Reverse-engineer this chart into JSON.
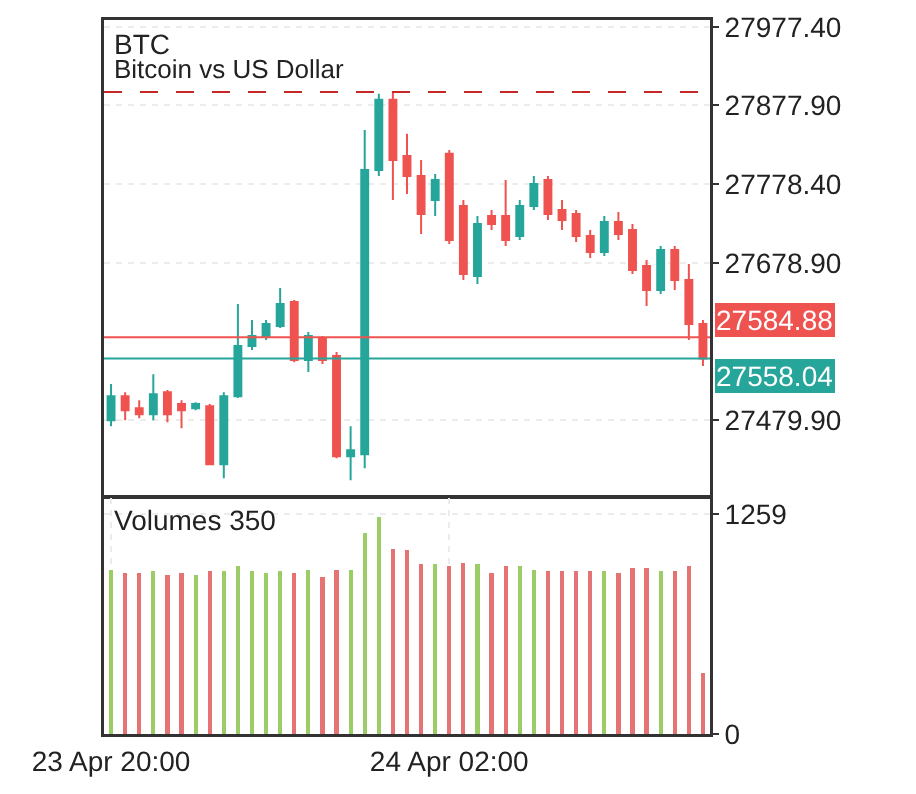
{
  "chart_data": [
    {
      "type": "candlestick",
      "title": "BTC",
      "subtitle": "Bitcoin vs US Dollar",
      "categories": [
        null,
        null,
        null,
        null,
        null,
        null,
        null,
        null,
        null,
        null,
        null,
        null,
        null,
        null,
        null,
        null,
        null,
        null,
        null,
        null,
        null,
        null,
        null,
        null,
        null,
        null,
        null,
        null,
        null,
        null,
        null,
        null,
        null,
        null,
        null,
        null,
        null,
        null,
        null,
        null,
        null,
        null,
        null
      ],
      "ohlc": [
        [
          27479.9,
          27525.5,
          27472.3,
          27510.3
        ],
        [
          27510.3,
          27515.3,
          27479.9,
          27492.6
        ],
        [
          27495.1,
          27505.2,
          27482.4,
          27487.5
        ],
        [
          27487.5,
          27538.1,
          27479.9,
          27512.8
        ],
        [
          27515.3,
          27517.9,
          27477.4,
          27487.5
        ],
        [
          27500.2,
          27505.2,
          27469.8,
          27492.6
        ],
        [
          27495.1,
          27502.7,
          27492.6,
          27500.2
        ],
        [
          27497.6,
          27500.2,
          27424.2,
          27424.2
        ],
        [
          27424.2,
          27515.3,
          27406.5,
          27510.3
        ],
        [
          27510.3,
          27626.8,
          27507.8,
          27573.6
        ],
        [
          27573.6,
          27606.5,
          27568.5,
          27586.2
        ],
        [
          27586.2,
          27606.5,
          27581.2,
          27601.4
        ],
        [
          27598.9,
          27647.0,
          27596.4,
          27626.8
        ],
        [
          27629.3,
          27631.8,
          27553.3,
          27555.9
        ],
        [
          27555.9,
          27591.3,
          27540.7,
          27586.2
        ],
        [
          27583.7,
          27586.2,
          27550.8,
          27555.9
        ],
        [
          27560.9,
          27566.0,
          27431.8,
          27434.3
        ],
        [
          27434.3,
          27472.3,
          27403.9,
          27441.9
        ],
        [
          27436.9,
          27847.0,
          27419.1,
          27796.4
        ],
        [
          27796.4,
          27892.6,
          27788.8,
          27885.0
        ],
        [
          27885.0,
          27895.1,
          27758.4,
          27809.1
        ],
        [
          27814.1,
          27842.0,
          27766.0,
          27788.8
        ],
        [
          27788.8,
          27809.1,
          27715.4,
          27740.7
        ],
        [
          27758.4,
          27791.3,
          27738.2,
          27783.7
        ],
        [
          27816.7,
          27821.7,
          27702.7,
          27707.8
        ],
        [
          27750.8,
          27758.4,
          27657.1,
          27664.7
        ],
        [
          27662.2,
          27738.2,
          27652.1,
          27728.0
        ],
        [
          27738.2,
          27745.8,
          27720.4,
          27728.0
        ],
        [
          27738.2,
          27783.7,
          27700.2,
          27707.8
        ],
        [
          27712.9,
          27758.4,
          27707.8,
          27750.8
        ],
        [
          27750.8,
          27788.8,
          27745.8,
          27778.7
        ],
        [
          27783.7,
          27788.8,
          27733.1,
          27740.7
        ],
        [
          27745.8,
          27758.4,
          27720.4,
          27733.1
        ],
        [
          27740.7,
          27745.8,
          27705.2,
          27712.9
        ],
        [
          27712.9,
          27720.4,
          27685.0,
          27692.6
        ],
        [
          27692.6,
          27738.2,
          27687.5,
          27730.6
        ],
        [
          27730.6,
          27743.2,
          27707.8,
          27715.4
        ],
        [
          27720.4,
          27728.0,
          27664.7,
          27669.8
        ],
        [
          27674.9,
          27682.5,
          27624.2,
          27644.5
        ],
        [
          27644.5,
          27700.2,
          27639.4,
          27695.1
        ],
        [
          27695.1,
          27700.2,
          27644.5,
          27657.1
        ],
        [
          27657.1,
          27677.4,
          27581.2,
          27601.4
        ],
        [
          27601.4,
          27606.5,
          27548.3,
          27558.04
        ]
      ],
      "colors": [
        "#26a69a",
        "#ef5350",
        "#ef5350",
        "#26a69a",
        "#ef5350",
        "#ef5350",
        "#26a69a",
        "#ef5350",
        "#26a69a",
        "#26a69a",
        "#26a69a",
        "#26a69a",
        "#26a69a",
        "#ef5350",
        "#26a69a",
        "#ef5350",
        "#ef5350",
        "#26a69a",
        "#26a69a",
        "#26a69a",
        "#ef5350",
        "#ef5350",
        "#ef5350",
        "#26a69a",
        "#ef5350",
        "#ef5350",
        "#26a69a",
        "#ef5350",
        "#ef5350",
        "#26a69a",
        "#26a69a",
        "#ef5350",
        "#ef5350",
        "#ef5350",
        "#ef5350",
        "#26a69a",
        "#ef5350",
        "#ef5350",
        "#ef5350",
        "#26a69a",
        "#ef5350",
        "#ef5350",
        "#ef5350"
      ],
      "ylim": [
        27384,
        27986
      ],
      "yticks": [
        {
          "value": 27977.4,
          "label": "27977.40"
        },
        {
          "value": 27877.9,
          "label": "27877.90"
        },
        {
          "value": 27778.4,
          "label": "27778.40"
        },
        {
          "value": 27678.9,
          "label": "27678.90"
        },
        {
          "value": 27479.9,
          "label": "27479.90"
        }
      ],
      "ref_lines": [
        {
          "axis": "y",
          "value": 27895,
          "color": "#c62828",
          "line_style": "dashed"
        },
        {
          "axis": "y",
          "value": 27584.88,
          "label": "27584.88",
          "color": "#ef5350"
        },
        {
          "axis": "y",
          "value": 27558.04,
          "label": "27558.04",
          "color": "#26a69a"
        }
      ],
      "grid": true,
      "tick_labels": "y"
    },
    {
      "type": "bar",
      "title": "Volumes 350",
      "categories": [
        "23 Apr 20:00",
        null,
        null,
        null,
        null,
        null,
        null,
        null,
        null,
        null,
        null,
        null,
        null,
        null,
        null,
        null,
        null,
        null,
        null,
        null,
        null,
        null,
        null,
        null,
        "24 Apr 02:00",
        null,
        null,
        null,
        null,
        null,
        null,
        null,
        null,
        null,
        null,
        null,
        null,
        null,
        null,
        null,
        null,
        null,
        null
      ],
      "values": [
        940,
        920,
        920,
        930,
        910,
        920,
        910,
        930,
        930,
        960,
        930,
        920,
        930,
        920,
        940,
        900,
        940,
        940,
        1150,
        1240,
        1060,
        1050,
        970,
        970,
        960,
        980,
        970,
        920,
        960,
        960,
        940,
        930,
        930,
        930,
        930,
        930,
        920,
        950,
        950,
        930,
        930,
        960,
        350
      ],
      "colors": [
        "#9ccc65",
        "#e57373",
        "#e57373",
        "#9ccc65",
        "#e57373",
        "#e57373",
        "#9ccc65",
        "#e57373",
        "#9ccc65",
        "#9ccc65",
        "#9ccc65",
        "#9ccc65",
        "#9ccc65",
        "#e57373",
        "#9ccc65",
        "#e57373",
        "#e57373",
        "#9ccc65",
        "#9ccc65",
        "#9ccc65",
        "#e57373",
        "#e57373",
        "#e57373",
        "#9ccc65",
        "#e57373",
        "#e57373",
        "#9ccc65",
        "#e57373",
        "#e57373",
        "#9ccc65",
        "#9ccc65",
        "#e57373",
        "#e57373",
        "#e57373",
        "#e57373",
        "#9ccc65",
        "#e57373",
        "#e57373",
        "#e57373",
        "#9ccc65",
        "#e57373",
        "#e57373",
        "#e57373"
      ],
      "ylim": [
        0,
        1350
      ],
      "yticks": [
        0,
        1259
      ],
      "grid": true
    }
  ]
}
